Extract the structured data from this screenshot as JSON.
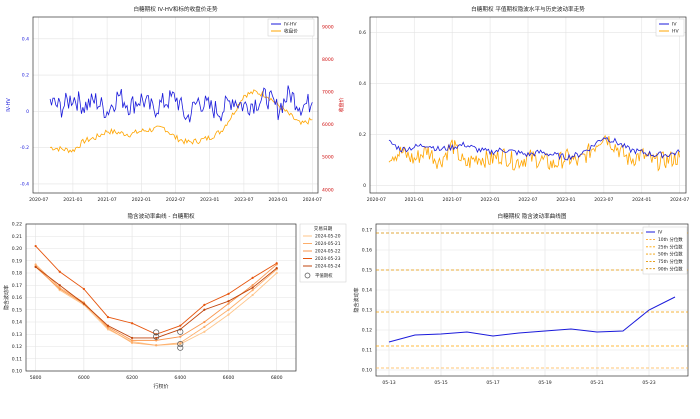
{
  "chart_data": [
    {
      "type": "line",
      "title": "白糖期权 IV-HV和标的收盘价走势",
      "xlabel": "",
      "ylabel": "IV-HV",
      "ylabel_right": "收盘价",
      "x_tick_labels": [
        "2020-07",
        "2021-01",
        "2021-07",
        "2022-01",
        "2022-07",
        "2023-01",
        "2023-07",
        "2024-01",
        "2024-07"
      ],
      "ylim": [
        -0.45,
        0.52
      ],
      "y_ticks": [
        -0.4,
        -0.2,
        0.0,
        0.2,
        0.4
      ],
      "y_tick_labels": [
        "-0.4",
        "-0.2",
        "0",
        "0.2",
        "0.4"
      ],
      "ylim_right": [
        3900,
        9300
      ],
      "y_ticks_right": [
        4000,
        5000,
        6000,
        7000,
        8000,
        9000
      ],
      "y_tick_labels_right": [
        "4000",
        "5000",
        "6000",
        "7000",
        "8000",
        "9000"
      ],
      "legend": "top-right",
      "grid": true,
      "series": [
        {
          "name": "IV-HV",
          "color": "#1a1adb",
          "axis": "left",
          "x": [
            "2020-09",
            "2020-11",
            "2021-01",
            "2021-03",
            "2021-05",
            "2021-07",
            "2021-09",
            "2021-11",
            "2022-01",
            "2022-03",
            "2022-05",
            "2022-07",
            "2022-09",
            "2022-11",
            "2023-01",
            "2023-03",
            "2023-05",
            "2023-07",
            "2023-09",
            "2023-11",
            "2024-01",
            "2024-03",
            "2024-05",
            "2024-07"
          ],
          "values": [
            0.05,
            0.02,
            0.08,
            0.03,
            0.06,
            0.0,
            0.09,
            0.03,
            0.07,
            0.01,
            0.05,
            0.08,
            -0.04,
            0.06,
            0.02,
            0.0,
            0.07,
            0.03,
            0.05,
            0.08,
            0.01,
            0.1,
            0.03,
            0.05
          ]
        },
        {
          "name": "收盘价",
          "color": "#ffa500",
          "axis": "right",
          "x": [
            "2020-09",
            "2020-11",
            "2021-01",
            "2021-03",
            "2021-05",
            "2021-07",
            "2021-09",
            "2021-11",
            "2022-01",
            "2022-03",
            "2022-05",
            "2022-07",
            "2022-09",
            "2022-11",
            "2023-01",
            "2023-03",
            "2023-05",
            "2023-07",
            "2023-09",
            "2023-11",
            "2024-01",
            "2024-03",
            "2024-05",
            "2024-07"
          ],
          "values": [
            5300,
            5250,
            5200,
            5500,
            5600,
            5800,
            5750,
            5700,
            5800,
            5850,
            5900,
            5600,
            5450,
            5500,
            5600,
            5800,
            6300,
            6900,
            7000,
            6900,
            6600,
            6300,
            6000,
            6150
          ]
        }
      ]
    },
    {
      "type": "line",
      "title": "白糖期权 平值期权隐波水平与历史波动率走势",
      "xlabel": "",
      "ylabel": "",
      "x_tick_labels": [
        "2020-07",
        "2021-01",
        "2021-07",
        "2022-01",
        "2022-07",
        "2023-01",
        "2023-07",
        "2024-01",
        "2024-07"
      ],
      "ylim": [
        -0.03,
        0.66
      ],
      "y_ticks": [
        0.0,
        0.2,
        0.4,
        0.6
      ],
      "y_tick_labels": [
        "0",
        "0.2",
        "0.4",
        "0.6"
      ],
      "legend": "top-right",
      "grid": true,
      "series": [
        {
          "name": "IV",
          "color": "#1a1adb",
          "x": [
            "2020-09",
            "2020-11",
            "2021-01",
            "2021-03",
            "2021-05",
            "2021-07",
            "2021-09",
            "2021-11",
            "2022-01",
            "2022-03",
            "2022-05",
            "2022-07",
            "2022-09",
            "2022-11",
            "2023-01",
            "2023-03",
            "2023-05",
            "2023-07",
            "2023-09",
            "2023-11",
            "2024-01",
            "2024-03",
            "2024-05",
            "2024-07"
          ],
          "values": [
            0.17,
            0.14,
            0.15,
            0.16,
            0.14,
            0.15,
            0.16,
            0.14,
            0.13,
            0.14,
            0.13,
            0.12,
            0.13,
            0.12,
            0.11,
            0.12,
            0.15,
            0.19,
            0.17,
            0.14,
            0.13,
            0.12,
            0.12,
            0.13
          ]
        },
        {
          "name": "HV",
          "color": "#ffa500",
          "x": [
            "2020-09",
            "2020-11",
            "2021-01",
            "2021-03",
            "2021-05",
            "2021-07",
            "2021-09",
            "2021-11",
            "2022-01",
            "2022-03",
            "2022-05",
            "2022-07",
            "2022-09",
            "2022-11",
            "2023-01",
            "2023-03",
            "2023-05",
            "2023-07",
            "2023-09",
            "2023-11",
            "2024-01",
            "2024-03",
            "2024-05",
            "2024-07"
          ],
          "values": [
            0.12,
            0.13,
            0.1,
            0.14,
            0.09,
            0.16,
            0.08,
            0.11,
            0.1,
            0.12,
            0.09,
            0.11,
            0.1,
            0.08,
            0.11,
            0.09,
            0.14,
            0.2,
            0.15,
            0.1,
            0.12,
            0.09,
            0.1,
            0.11
          ]
        }
      ]
    },
    {
      "type": "line",
      "title": "隐含波动率曲线 - 白糖期权",
      "xlabel": "行权价",
      "ylabel": "隐含波动率",
      "xlim": [
        5760,
        6880
      ],
      "x_ticks": [
        5800,
        6000,
        6200,
        6400,
        6600,
        6800
      ],
      "x_tick_labels": [
        "5800",
        "6000",
        "6200",
        "6400",
        "6600",
        "6800"
      ],
      "ylim": [
        0.1,
        0.22
      ],
      "y_ticks": [
        0.1,
        0.11,
        0.12,
        0.13,
        0.14,
        0.15,
        0.16,
        0.17,
        0.18,
        0.19,
        0.2,
        0.21,
        0.22
      ],
      "y_tick_labels": [
        "0.10",
        "0.11",
        "0.12",
        "0.13",
        "0.14",
        "0.15",
        "0.16",
        "0.17",
        "0.18",
        "0.19",
        "0.20",
        "0.21",
        "0.22"
      ],
      "legend_title": "交易日期",
      "legend": "right",
      "grid": true,
      "x": [
        5800,
        5900,
        6000,
        6100,
        6200,
        6300,
        6400,
        6500,
        6600,
        6700,
        6800
      ],
      "series": [
        {
          "name": "2024-05-20",
          "color": "#ffc58a",
          "values": [
            0.186,
            0.166,
            0.154,
            0.134,
            0.124,
            0.121,
            0.122,
            0.132,
            0.146,
            0.162,
            0.18
          ]
        },
        {
          "name": "2024-05-21",
          "color": "#fdae6b",
          "values": [
            0.187,
            0.168,
            0.156,
            0.135,
            0.123,
            0.121,
            0.123,
            0.136,
            0.15,
            0.166,
            0.183
          ]
        },
        {
          "name": "2024-05-22",
          "color": "#f9974f",
          "values": [
            0.185,
            0.167,
            0.155,
            0.136,
            0.125,
            0.125,
            0.128,
            0.14,
            0.155,
            0.17,
            0.187
          ]
        },
        {
          "name": "2024-05-23",
          "color": "#e6550d",
          "values": [
            0.202,
            0.181,
            0.167,
            0.144,
            0.139,
            0.13,
            0.137,
            0.154,
            0.163,
            0.176,
            0.188
          ]
        },
        {
          "name": "2024-05-24",
          "color": "#c0450c",
          "values": [
            0.185,
            0.17,
            0.155,
            0.137,
            0.127,
            0.127,
            0.134,
            0.15,
            0.157,
            0.168,
            0.184
          ]
        }
      ],
      "markers_name": "平值期权",
      "markers": [
        {
          "x": 6300,
          "y": 0.1315
        },
        {
          "x": 6300,
          "y": 0.128
        },
        {
          "x": 6400,
          "y": 0.132
        },
        {
          "x": 6400,
          "y": 0.122
        },
        {
          "x": 6400,
          "y": 0.119
        }
      ]
    },
    {
      "type": "line",
      "title": "白糖期权 隐含波动率曲线图",
      "xlabel": "",
      "ylabel": "隐含波动率",
      "x": [
        "05-13",
        "05-14",
        "05-15",
        "05-16",
        "05-17",
        "05-18",
        "05-19",
        "05-20",
        "05-21",
        "05-22",
        "05-23",
        "05-24"
      ],
      "x_tick_labels": [
        "05-13",
        "05-15",
        "05-17",
        "05-19",
        "05-21",
        "05-23"
      ],
      "ylim": [
        0.097,
        0.173
      ],
      "y_ticks": [
        0.1,
        0.11,
        0.12,
        0.13,
        0.14,
        0.15,
        0.16,
        0.17
      ],
      "y_tick_labels": [
        "0.10",
        "0.11",
        "0.12",
        "0.13",
        "0.14",
        "0.15",
        "0.16",
        "0.17"
      ],
      "legend": "top-right",
      "grid": true,
      "series": [
        {
          "name": "IV",
          "color": "#1a1adb",
          "values": [
            0.114,
            0.1175,
            0.118,
            0.119,
            0.117,
            0.1185,
            0.1195,
            0.1205,
            0.119,
            0.1195,
            0.13,
            0.1365
          ]
        }
      ],
      "percentiles": [
        {
          "name": "10th 分位数",
          "value": 0.101,
          "color": "#ffb347"
        },
        {
          "name": "25th 分位数",
          "value": 0.112,
          "color": "#ffa500"
        },
        {
          "name": "50th 分位数",
          "value": 0.129,
          "color": "#f29c00"
        },
        {
          "name": "75th 分位数",
          "value": 0.15,
          "color": "#e69500"
        },
        {
          "name": "90th 分位数",
          "value": 0.1685,
          "color": "#d98c00"
        }
      ]
    }
  ]
}
